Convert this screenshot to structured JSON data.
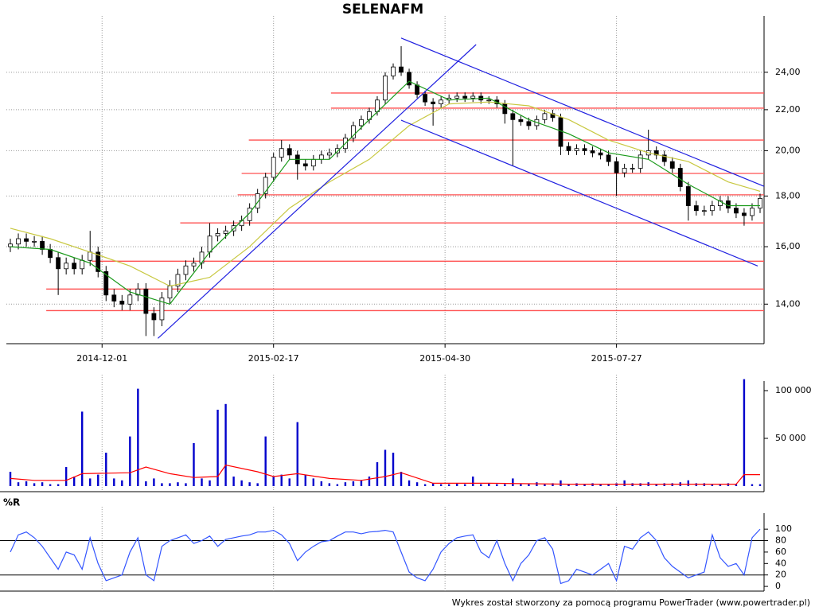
{
  "chart_data": [
    {
      "type": "candlestick",
      "title": "SELENAFM",
      "log": true,
      "ylim": [
        12.77,
        27.36
      ],
      "xlim": [
        0,
        95
      ],
      "yticks": [
        {
          "value": 14,
          "label": "14,00"
        },
        {
          "value": 16,
          "label": "16,00"
        },
        {
          "value": 18,
          "label": "18,00"
        },
        {
          "value": 20,
          "label": "20,00"
        },
        {
          "value": 22,
          "label": "22,00"
        },
        {
          "value": 24,
          "label": "24,00"
        }
      ],
      "xticks": [
        {
          "value": 12,
          "label": "2014-12-01"
        },
        {
          "value": 33.5,
          "label": "2015-02-17"
        },
        {
          "value": 55,
          "label": "2015-04-30"
        },
        {
          "value": 76.5,
          "label": "2015-07-27"
        }
      ],
      "grid": true,
      "up_color": "#ffffff",
      "down_color": "#000000",
      "open": [
        16.0,
        16.1,
        16.3,
        16.2,
        16.2,
        15.9,
        15.6,
        15.2,
        15.4,
        15.2,
        15.5,
        15.8,
        15.1,
        14.3,
        14.1,
        14.0,
        14.3,
        14.5,
        13.7,
        13.5,
        14.2,
        14.6,
        15.0,
        15.3,
        15.4,
        15.8,
        16.4,
        16.5,
        16.6,
        16.8,
        17.0,
        17.5,
        18.1,
        18.8,
        19.7,
        20.1,
        19.8,
        19.4,
        19.3,
        19.6,
        19.8,
        19.9,
        20.1,
        20.6,
        21.2,
        21.5,
        21.9,
        22.5,
        23.8,
        24.3,
        24.0,
        23.3,
        22.8,
        22.4,
        22.3,
        22.5,
        22.6,
        22.7,
        22.6,
        22.7,
        22.5,
        22.5,
        22.3,
        21.8,
        21.5,
        21.4,
        21.2,
        21.5,
        21.8,
        21.6,
        20.2,
        20.0,
        20.1,
        20.0,
        19.9,
        19.8,
        19.5,
        19.0,
        19.2,
        19.2,
        19.8,
        20.0,
        19.8,
        19.5,
        19.2,
        18.4,
        17.6,
        17.4,
        17.4,
        17.6,
        17.8,
        17.5,
        17.3,
        17.2,
        17.5
      ],
      "high": [
        16.3,
        16.5,
        16.5,
        16.4,
        16.4,
        16.1,
        15.8,
        15.6,
        15.6,
        15.7,
        16.6,
        16.0,
        15.3,
        14.5,
        14.3,
        14.5,
        14.7,
        14.7,
        13.9,
        14.4,
        14.8,
        15.2,
        15.5,
        15.6,
        16.0,
        16.9,
        16.7,
        16.8,
        17.0,
        17.2,
        17.7,
        18.3,
        19.0,
        19.9,
        20.5,
        20.3,
        20.0,
        19.6,
        19.8,
        20.0,
        20.1,
        20.3,
        20.8,
        21.4,
        21.7,
        22.1,
        22.7,
        24.0,
        24.5,
        25.5,
        24.2,
        23.5,
        23.0,
        22.6,
        22.7,
        22.8,
        22.9,
        22.9,
        22.9,
        22.9,
        22.7,
        22.7,
        22.5,
        22.0,
        21.7,
        21.6,
        21.7,
        22.0,
        22.0,
        21.8,
        20.4,
        20.3,
        20.3,
        20.2,
        20.1,
        20.0,
        19.7,
        19.4,
        19.4,
        20.0,
        21.0,
        20.2,
        20.0,
        19.7,
        19.4,
        18.6,
        17.8,
        17.6,
        17.8,
        18.0,
        18.0,
        17.7,
        17.5,
        17.7,
        18.1
      ],
      "low": [
        15.8,
        15.9,
        16.0,
        16.0,
        15.7,
        15.4,
        14.3,
        15.0,
        15.0,
        15.0,
        15.3,
        14.9,
        14.1,
        13.9,
        13.8,
        13.8,
        14.1,
        13.0,
        13.0,
        13.3,
        14.0,
        14.4,
        14.8,
        15.1,
        15.2,
        15.6,
        16.2,
        16.3,
        16.4,
        16.6,
        16.8,
        17.3,
        17.9,
        18.6,
        19.5,
        19.6,
        18.7,
        19.1,
        19.1,
        19.4,
        19.6,
        19.7,
        19.9,
        20.4,
        21.0,
        21.3,
        21.7,
        22.3,
        23.6,
        23.8,
        23.1,
        22.6,
        22.2,
        21.2,
        22.1,
        22.3,
        22.4,
        22.4,
        22.4,
        22.3,
        22.3,
        22.1,
        21.3,
        19.3,
        21.2,
        21.0,
        21.0,
        21.3,
        21.4,
        19.8,
        19.8,
        19.8,
        19.8,
        19.7,
        19.6,
        19.3,
        18.0,
        18.8,
        19.0,
        19.0,
        19.6,
        19.6,
        19.3,
        19.0,
        18.2,
        17.0,
        17.2,
        17.2,
        17.2,
        17.4,
        17.3,
        17.1,
        16.8,
        17.0,
        17.3
      ],
      "close": [
        16.1,
        16.3,
        16.2,
        16.2,
        15.9,
        15.6,
        15.2,
        15.4,
        15.2,
        15.5,
        15.8,
        15.1,
        14.3,
        14.1,
        14.0,
        14.3,
        14.5,
        13.7,
        13.5,
        14.2,
        14.6,
        15.0,
        15.3,
        15.4,
        15.8,
        16.4,
        16.5,
        16.6,
        16.8,
        17.0,
        17.5,
        18.1,
        18.8,
        19.7,
        20.1,
        19.8,
        19.4,
        19.3,
        19.6,
        19.8,
        19.9,
        20.1,
        20.6,
        21.2,
        21.5,
        21.9,
        22.5,
        23.8,
        24.3,
        24.0,
        23.3,
        22.8,
        22.4,
        22.3,
        22.5,
        22.6,
        22.7,
        22.6,
        22.7,
        22.5,
        22.5,
        22.3,
        21.8,
        21.5,
        21.4,
        21.2,
        21.5,
        21.8,
        21.6,
        20.2,
        20.0,
        20.1,
        20.0,
        19.9,
        19.8,
        19.5,
        19.0,
        19.2,
        19.2,
        19.8,
        20.0,
        19.8,
        19.5,
        19.2,
        18.4,
        17.6,
        17.4,
        17.4,
        17.6,
        17.8,
        17.5,
        17.3,
        17.2,
        17.5,
        17.9
      ],
      "overlays": [
        {
          "color": "#c8c840",
          "x": [
            0,
            5,
            10,
            15,
            20,
            25,
            30,
            35,
            40,
            45,
            50,
            55,
            60,
            65,
            70,
            75,
            80,
            85,
            90,
            94
          ],
          "values": [
            16.7,
            16.3,
            15.8,
            15.3,
            14.6,
            14.9,
            16.0,
            17.5,
            18.6,
            19.6,
            21.2,
            22.3,
            22.4,
            22.2,
            21.5,
            20.5,
            19.9,
            19.5,
            18.6,
            18.2
          ]
        },
        {
          "color": "#1a9a1a",
          "x": [
            0,
            5,
            10,
            15,
            20,
            25,
            30,
            35,
            40,
            45,
            50,
            55,
            60,
            65,
            70,
            75,
            80,
            85,
            90,
            94
          ],
          "values": [
            16.0,
            15.9,
            15.4,
            14.4,
            14.0,
            15.8,
            17.3,
            19.6,
            19.6,
            21.5,
            23.5,
            22.5,
            22.6,
            21.5,
            20.8,
            19.9,
            19.6,
            18.5,
            17.6,
            17.6
          ]
        }
      ],
      "level_color": "#ff5050",
      "levels": [
        {
          "value": 22.87,
          "x0": 40.7
        },
        {
          "value": 22.08,
          "x0": 40.7
        },
        {
          "value": 20.5,
          "x0": 30.4
        },
        {
          "value": 18.97,
          "x0": 29.5
        },
        {
          "value": 18.05,
          "x0": 29.0
        },
        {
          "value": 16.91,
          "x0": 21.8
        },
        {
          "value": 15.47,
          "x0": 10.7
        },
        {
          "value": 14.5,
          "x0": 5
        },
        {
          "value": 13.79,
          "x0": 5
        }
      ],
      "trend_color": "#2020e0",
      "trendlines": [
        {
          "x": [
            19,
            58.9
          ],
          "values": [
            12.93,
            25.6
          ]
        },
        {
          "x": [
            49.5,
            95
          ],
          "values": [
            25.99,
            18.41
          ]
        },
        {
          "x": [
            49.5,
            94.2
          ],
          "values": [
            21.47,
            15.3
          ]
        }
      ]
    },
    {
      "type": "bar",
      "color": "#0000cc",
      "ylim": [
        0,
        110000
      ],
      "xlim": [
        0,
        95
      ],
      "yticks": [
        {
          "value": 50000,
          "label": "50 000"
        },
        {
          "value": 100000,
          "label": "100 000"
        }
      ],
      "values": [
        15000,
        4000,
        5000,
        3000,
        4000,
        2000,
        2000,
        20000,
        10000,
        78000,
        8000,
        12000,
        35000,
        8000,
        6000,
        52000,
        102000,
        5000,
        8000,
        3000,
        3000,
        4000,
        3000,
        45000,
        8000,
        6000,
        80000,
        86000,
        10000,
        6000,
        4000,
        3000,
        52000,
        10000,
        12000,
        8000,
        67000,
        12000,
        8000,
        5000,
        3000,
        2000,
        4000,
        5000,
        6000,
        10000,
        25000,
        38000,
        35000,
        15000,
        6000,
        4000,
        2000,
        3000,
        2000,
        2000,
        3000,
        2000,
        10000,
        2000,
        3000,
        2000,
        2000,
        8000,
        2000,
        2000,
        4000,
        2000,
        3000,
        6000,
        2000,
        3000,
        2000,
        3000,
        2000,
        2000,
        3000,
        6000,
        3000,
        3000,
        4000,
        2000,
        3000,
        3000,
        4000,
        6000,
        3000,
        3000,
        2000,
        2000,
        3000,
        2000,
        112000,
        2000,
        2000
      ],
      "overlays": [
        {
          "color": "#ff0000",
          "x": [
            0,
            3,
            7,
            9,
            15,
            17,
            20,
            23,
            26,
            27,
            31,
            33,
            36,
            40,
            44,
            47,
            49,
            53,
            60,
            70,
            85,
            91,
            92,
            94
          ],
          "values": [
            8000,
            6000,
            6000,
            13000,
            14000,
            20000,
            13000,
            9000,
            10000,
            22000,
            15000,
            10000,
            13000,
            8000,
            6000,
            10000,
            14000,
            3000,
            3000,
            2000,
            2000,
            2000,
            12000,
            12000
          ]
        }
      ]
    },
    {
      "type": "line",
      "title": "%R",
      "color": "#3355ff",
      "ylim": [
        -11,
        128
      ],
      "xlim": [
        0,
        95
      ],
      "yticks": [
        0,
        20,
        40,
        60,
        80,
        100
      ],
      "bands": [
        20,
        80
      ],
      "values": [
        60,
        90,
        95,
        85,
        70,
        50,
        30,
        60,
        55,
        30,
        85,
        40,
        10,
        15,
        20,
        60,
        85,
        20,
        10,
        70,
        80,
        85,
        90,
        75,
        80,
        88,
        70,
        82,
        85,
        88,
        90,
        95,
        95,
        98,
        90,
        75,
        45,
        60,
        70,
        78,
        80,
        88,
        95,
        95,
        92,
        95,
        96,
        98,
        95,
        60,
        25,
        15,
        10,
        30,
        60,
        75,
        85,
        88,
        90,
        60,
        50,
        80,
        40,
        10,
        40,
        55,
        80,
        85,
        65,
        5,
        10,
        30,
        25,
        20,
        30,
        40,
        10,
        70,
        65,
        85,
        95,
        80,
        50,
        35,
        25,
        15,
        20,
        25,
        90,
        50,
        35,
        40,
        20,
        85,
        100
      ]
    }
  ],
  "footer": "Wykres został stworzony za pomocą programu PowerTrader (www.powertrader.pl)"
}
